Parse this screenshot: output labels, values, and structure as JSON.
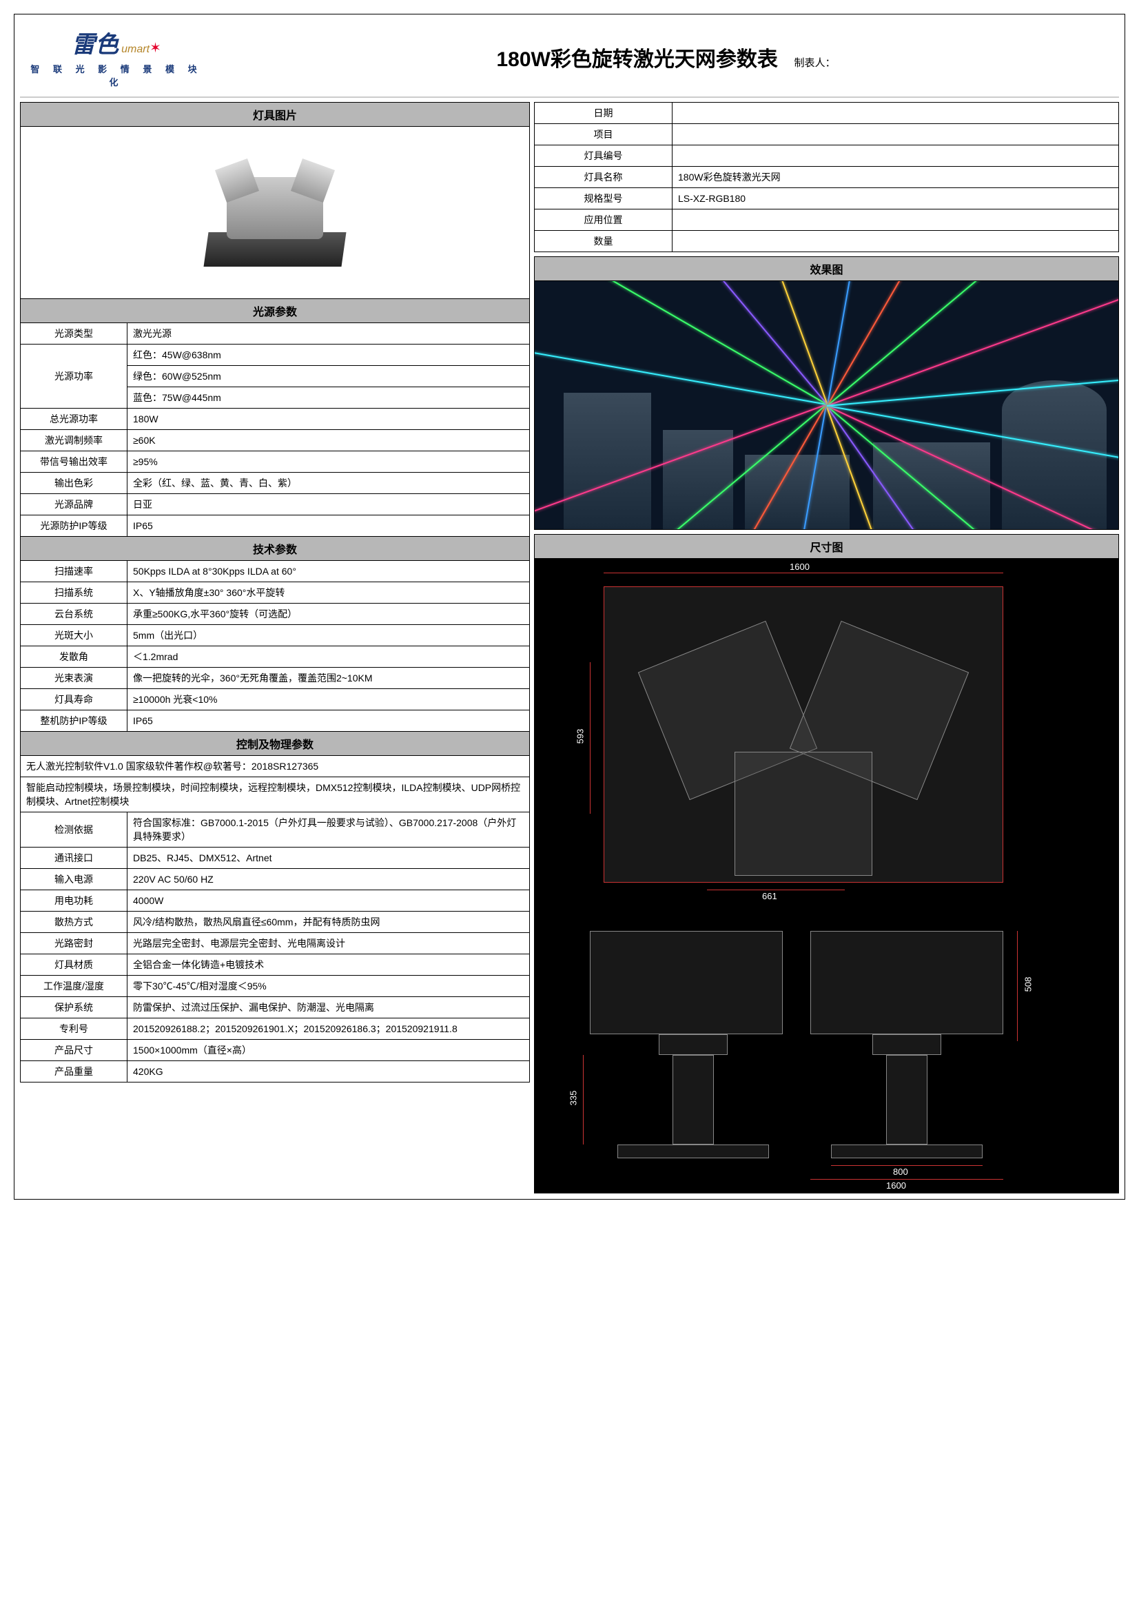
{
  "logo": {
    "brand_cn": "雷色",
    "brand_en": "umart",
    "tagline": "智 联 光 影 情 景 模 块 化"
  },
  "title": "180W彩色旋转激光天网参数表",
  "preparer_label": "制表人：",
  "sections": {
    "image": "灯具图片",
    "light_params": "光源参数",
    "tech_params": "技术参数",
    "control_params": "控制及物理参数",
    "effect": "效果图",
    "dimension": "尺寸图"
  },
  "info": {
    "date": {
      "label": "日期",
      "value": ""
    },
    "project": {
      "label": "项目",
      "value": ""
    },
    "fixture_no": {
      "label": "灯具编号",
      "value": ""
    },
    "fixture_name": {
      "label": "灯具名称",
      "value": "180W彩色旋转激光天网"
    },
    "model": {
      "label": "规格型号",
      "value": "LS-XZ-RGB180"
    },
    "position": {
      "label": "应用位置",
      "value": ""
    },
    "qty": {
      "label": "数量",
      "value": ""
    }
  },
  "light": [
    {
      "label": "光源类型",
      "value": "激光光源"
    },
    {
      "label": "光源功率",
      "rows": [
        "红色：45W@638nm",
        "绿色：60W@525nm",
        "蓝色：75W@445nm"
      ]
    },
    {
      "label": "总光源功率",
      "value": "180W"
    },
    {
      "label": "激光调制频率",
      "value": "≥60K"
    },
    {
      "label": "带信号输出效率",
      "value": "≥95%"
    },
    {
      "label": "输出色彩",
      "value": "全彩（红、绿、蓝、黄、青、白、紫）"
    },
    {
      "label": "光源品牌",
      "value": "日亚"
    },
    {
      "label": "光源防护IP等级",
      "value": "IP65"
    }
  ],
  "tech": [
    {
      "label": "扫描速率",
      "value": "50Kpps ILDA at 8°30Kpps ILDA at 60°"
    },
    {
      "label": "扫描系统",
      "value": "X、Y轴播放角度±30°  360°水平旋转"
    },
    {
      "label": "云台系统",
      "value": "承重≥500KG,水平360°旋转（可选配）"
    },
    {
      "label": "光斑大小",
      "value": "5mm（出光口）"
    },
    {
      "label": "发散角",
      "value": "＜1.2mrad"
    },
    {
      "label": "光束表演",
      "value": "像一把旋转的光伞，360°无死角覆盖，覆盖范围2~10KM"
    },
    {
      "label": "灯具寿命",
      "value": "≥10000h 光衰<10%"
    },
    {
      "label": "整机防护IP等级",
      "value": "IP65"
    }
  ],
  "control_fullrows": [
    "无人激光控制软件V1.0  国家级软件著作权@软著号：2018SR127365",
    "智能启动控制模块，场景控制模块，时间控制模块，远程控制模块，DMX512控制模块，ILDA控制模块、UDP网桥控制模块、Artnet控制模块"
  ],
  "control": [
    {
      "label": "检测依据",
      "value": "符合国家标准：GB7000.1-2015（户外灯具一般要求与试验）、GB7000.217-2008（户外灯具特殊要求）"
    },
    {
      "label": "通讯接口",
      "value": "DB25、RJ45、DMX512、Artnet"
    },
    {
      "label": "输入电源",
      "value": "220V AC 50/60 HZ"
    },
    {
      "label": "用电功耗",
      "value": "4000W"
    },
    {
      "label": "散热方式",
      "value": "风冷/结构散热，散热风扇直径≤60mm，并配有特质防虫网"
    },
    {
      "label": "光路密封",
      "value": "光路层完全密封、电源层完全密封、光电隔离设计"
    },
    {
      "label": "灯具材质",
      "value": "全铝合金一体化铸造+电镀技术"
    },
    {
      "label": "工作温度/湿度",
      "value": "零下30℃-45℃/相对湿度＜95%"
    },
    {
      "label": "保护系统",
      "value": "防雷保护、过流过压保护、漏电保护、防潮湿、光电隔离"
    },
    {
      "label": "专利号",
      "value": "201520926188.2；2015209261901.X；201520926186.3；201520921911.8"
    },
    {
      "label": "产品尺寸",
      "value": "1500×1000mm（直径×高）"
    },
    {
      "label": "产品重量",
      "value": "420KG"
    }
  ],
  "beams": [
    {
      "angle": 10,
      "color": "#36f0ff"
    },
    {
      "angle": 25,
      "color": "#ff3a8c"
    },
    {
      "angle": 40,
      "color": "#3aff6a"
    },
    {
      "angle": 55,
      "color": "#8a5aff"
    },
    {
      "angle": 70,
      "color": "#ffd23a"
    },
    {
      "angle": 100,
      "color": "#3a9cff"
    },
    {
      "angle": 120,
      "color": "#ff5a3a"
    },
    {
      "angle": 140,
      "color": "#3aff6a"
    },
    {
      "angle": 160,
      "color": "#ff3a8c"
    },
    {
      "angle": 190,
      "color": "#36f0ff"
    },
    {
      "angle": 210,
      "color": "#3aff6a"
    },
    {
      "angle": 230,
      "color": "#8a5aff"
    },
    {
      "angle": 250,
      "color": "#ffd23a"
    },
    {
      "angle": 280,
      "color": "#3a9cff"
    },
    {
      "angle": 300,
      "color": "#ff5a3a"
    },
    {
      "angle": 320,
      "color": "#3aff6a"
    },
    {
      "angle": 340,
      "color": "#ff3a8c"
    },
    {
      "angle": 355,
      "color": "#36f0ff"
    }
  ],
  "dims": {
    "w_top": "1600",
    "h_side": "593",
    "w_inner": "661",
    "w_bottom": "800",
    "w_bottom2": "1600",
    "h1": "508",
    "h2": "335"
  }
}
